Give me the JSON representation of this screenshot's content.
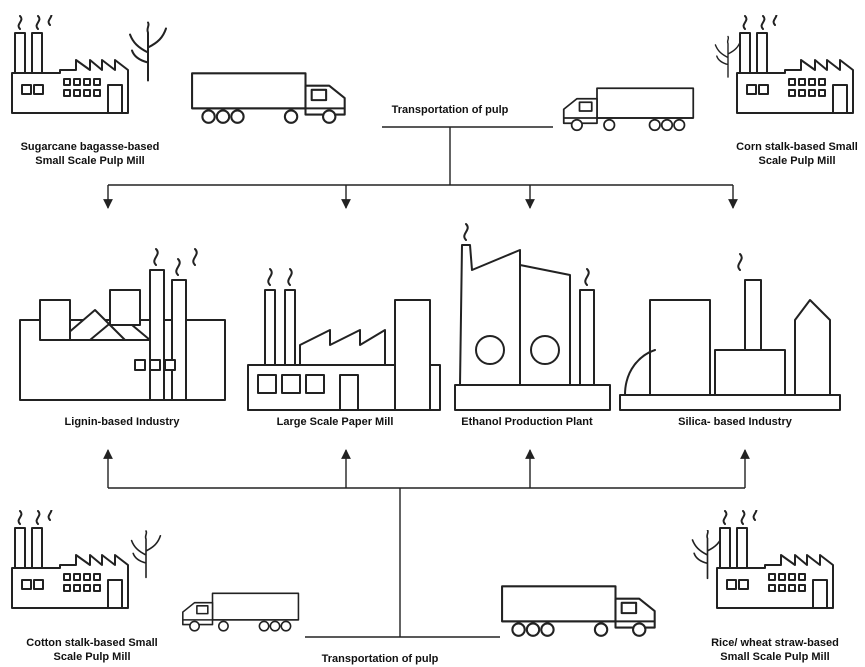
{
  "header": {
    "transport_top": "Transportation of pulp",
    "transport_bottom": "Transportation of pulp"
  },
  "sources": [
    {
      "label": [
        "Sugarcane bagasse-based",
        "Small Scale Pulp Mill"
      ]
    },
    {
      "label": [
        "Corn stalk-based Small",
        "Scale Pulp Mill"
      ]
    },
    {
      "label": [
        "Cotton stalk-based Small",
        "Scale Pulp Mill"
      ]
    },
    {
      "label": [
        "Rice/ wheat straw-based",
        "Small Scale Pulp Mill"
      ]
    }
  ],
  "industries": [
    {
      "label": "Lignin-based Industry"
    },
    {
      "label": "Large Scale Paper Mill"
    },
    {
      "label": "Ethanol Production Plant"
    },
    {
      "label": "Silica- based Industry"
    }
  ]
}
